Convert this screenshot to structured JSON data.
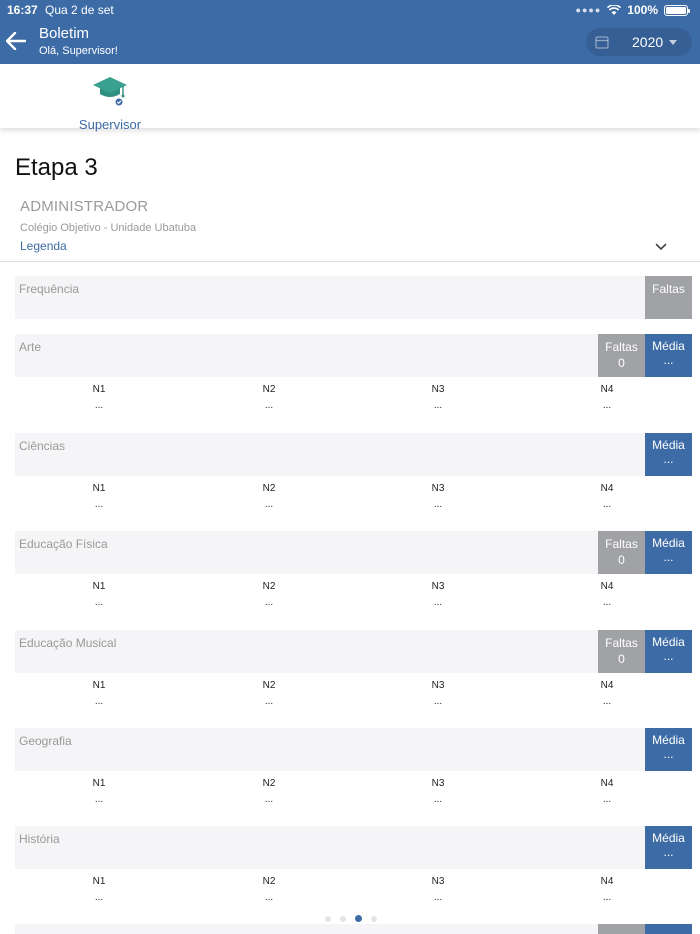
{
  "status_bar": {
    "time": "16:37",
    "date": "Qua 2 de set",
    "battery": "100%"
  },
  "header": {
    "title": "Boletim",
    "subtitle": "Olá, Supervisor!",
    "year": "2020"
  },
  "profile": {
    "label": "Supervisor"
  },
  "stage": {
    "title": "Etapa 3"
  },
  "student": {
    "name": "ADMINISTRADOR",
    "school": "Colégio Objetivo - Unidade Ubatuba"
  },
  "legend": {
    "label": "Legenda"
  },
  "frequency": {
    "label": "Frequência",
    "faltas_label": "Faltas"
  },
  "labels": {
    "faltas": "Faltas",
    "media": "Média"
  },
  "grade_headers": [
    "N1",
    "N2",
    "N3",
    "N4"
  ],
  "subjects": [
    {
      "name": "Arte",
      "faltas": "0",
      "media": "...",
      "grades": [
        "...",
        "...",
        "...",
        "..."
      ]
    },
    {
      "name": "Ciências",
      "media": "...",
      "grades": [
        "...",
        "...",
        "...",
        "..."
      ]
    },
    {
      "name": "Educação Física",
      "faltas": "0",
      "media": "...",
      "grades": [
        "...",
        "...",
        "...",
        "..."
      ]
    },
    {
      "name": "Educação Musical",
      "faltas": "0",
      "media": "...",
      "grades": [
        "...",
        "...",
        "...",
        "..."
      ]
    },
    {
      "name": "Geografia",
      "media": "...",
      "grades": [
        "...",
        "...",
        "...",
        "..."
      ]
    },
    {
      "name": "História",
      "media": "...",
      "grades": [
        "...",
        "...",
        "...",
        "..."
      ]
    }
  ],
  "colors": {
    "primary": "#3d6ba6",
    "faltas": "#a0a2a6",
    "row_bg": "#f5f5f7",
    "icon_teal": "#3aa08f"
  },
  "pager": {
    "count": 4,
    "active": 2
  }
}
